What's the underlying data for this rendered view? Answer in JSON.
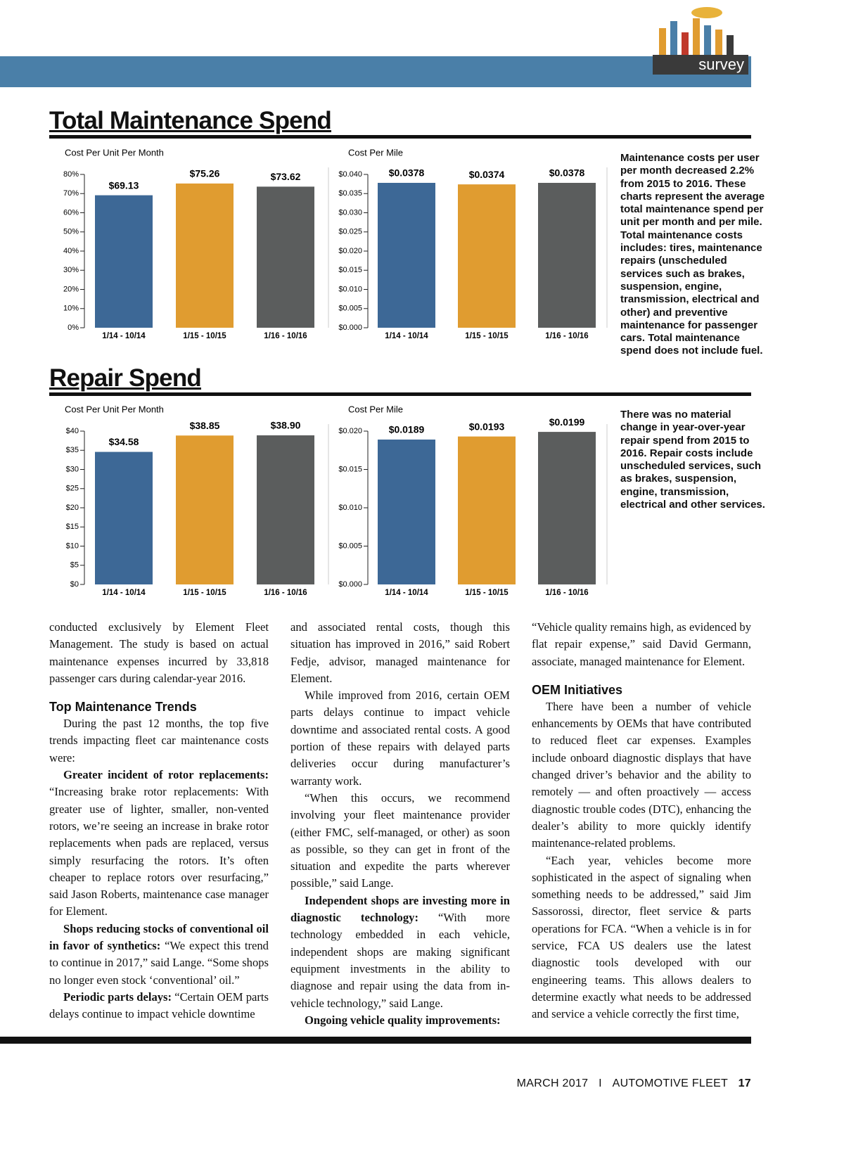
{
  "header": {
    "tag": "survey"
  },
  "sections": [
    {
      "title": "Total Maintenance Spend",
      "note": "Maintenance costs per user per month decreased 2.2% from 2015 to 2016. These charts represent the average total maintenance spend per unit per month and per mile. Total maintenance costs includes: tires, maintenance repairs (unscheduled services such as brakes, suspension, engine, transmission, electrical and other) and preventive maintenance for passenger cars. Total maintenance spend does not include fuel."
    },
    {
      "title": "Repair Spend",
      "note": "There was no material change in year-over-year repair spend from 2015 to 2016. Repair costs include unscheduled services, such as brakes, suspension, engine, transmission, electrical and other services."
    }
  ],
  "chart_data": [
    {
      "type": "bar",
      "title": "Cost Per Unit Per Month",
      "categories": [
        "1/14 - 10/14",
        "1/15 - 10/15",
        "1/16 - 10/16"
      ],
      "values": [
        69.13,
        75.26,
        73.62
      ],
      "value_labels": [
        "$69.13",
        "$75.26",
        "$73.62"
      ],
      "colors": [
        "#3d6896",
        "#e09c30",
        "#5b5d5d"
      ],
      "ylim": [
        0,
        80
      ],
      "yticks": [
        {
          "value": 0,
          "label": "0%"
        },
        {
          "value": 10,
          "label": "10%"
        },
        {
          "value": 20,
          "label": "20%"
        },
        {
          "value": 30,
          "label": "30%"
        },
        {
          "value": 40,
          "label": "40%"
        },
        {
          "value": 50,
          "label": "50%"
        },
        {
          "value": 60,
          "label": "60%"
        },
        {
          "value": 70,
          "label": "70%"
        },
        {
          "value": 80,
          "label": "80%"
        }
      ]
    },
    {
      "type": "bar",
      "title": "Cost Per Mile",
      "categories": [
        "1/14 - 10/14",
        "1/15 - 10/15",
        "1/16 - 10/16"
      ],
      "values": [
        0.0378,
        0.0374,
        0.0378
      ],
      "value_labels": [
        "$0.0378",
        "$0.0374",
        "$0.0378"
      ],
      "colors": [
        "#3d6896",
        "#e09c30",
        "#5b5d5d"
      ],
      "ylim": [
        0,
        0.04
      ],
      "yticks": [
        {
          "value": 0,
          "label": "$0.000"
        },
        {
          "value": 0.005,
          "label": "$0.005"
        },
        {
          "value": 0.01,
          "label": "$0.010"
        },
        {
          "value": 0.015,
          "label": "$0.015"
        },
        {
          "value": 0.02,
          "label": "$0.020"
        },
        {
          "value": 0.025,
          "label": "$0.025"
        },
        {
          "value": 0.03,
          "label": "$0.030"
        },
        {
          "value": 0.035,
          "label": "$0.035"
        },
        {
          "value": 0.04,
          "label": "$0.040"
        }
      ]
    },
    {
      "type": "bar",
      "title": "Cost Per Unit Per Month",
      "categories": [
        "1/14 - 10/14",
        "1/15 - 10/15",
        "1/16 - 10/16"
      ],
      "values": [
        34.58,
        38.85,
        38.9
      ],
      "value_labels": [
        "$34.58",
        "$38.85",
        "$38.90"
      ],
      "colors": [
        "#3d6896",
        "#e09c30",
        "#5b5d5d"
      ],
      "ylim": [
        0,
        40
      ],
      "yticks": [
        {
          "value": 0,
          "label": "$0"
        },
        {
          "value": 5,
          "label": "$5"
        },
        {
          "value": 10,
          "label": "$10"
        },
        {
          "value": 15,
          "label": "$15"
        },
        {
          "value": 20,
          "label": "$20"
        },
        {
          "value": 25,
          "label": "$25"
        },
        {
          "value": 30,
          "label": "$30"
        },
        {
          "value": 35,
          "label": "$35"
        },
        {
          "value": 40,
          "label": "$40"
        }
      ]
    },
    {
      "type": "bar",
      "title": "Cost Per Mile",
      "categories": [
        "1/14 - 10/14",
        "1/15 - 10/15",
        "1/16 - 10/16"
      ],
      "values": [
        0.0189,
        0.0193,
        0.0199
      ],
      "value_labels": [
        "$0.0189",
        "$0.0193",
        "$0.0199"
      ],
      "colors": [
        "#3d6896",
        "#e09c30",
        "#5b5d5d"
      ],
      "ylim": [
        0,
        0.02
      ],
      "yticks": [
        {
          "value": 0,
          "label": "$0.000"
        },
        {
          "value": 0.005,
          "label": "$0.005"
        },
        {
          "value": 0.01,
          "label": "$0.010"
        },
        {
          "value": 0.015,
          "label": "$0.015"
        },
        {
          "value": 0.02,
          "label": "$0.020"
        }
      ]
    }
  ],
  "article": {
    "columns": [
      [
        {
          "text": "conducted exclusively by Element Fleet Management. The study is based on actual maintenance expenses incurred by 33,818 passenger cars during calendar-year 2016."
        },
        {
          "heading": "Top Maintenance Trends"
        },
        {
          "text": "During the past 12 months, the top five trends impacting fleet car maintenance costs were:"
        },
        {
          "lead": "Greater incident of rotor replacements:",
          "text": "“Increasing brake rotor replacements: With greater use of lighter, smaller, non-vented rotors, we’re seeing an increase in brake rotor replacements when pads are replaced, versus simply resurfacing the rotors. It’s often cheaper to replace rotors over resurfacing,” said Jason Roberts, maintenance case manager for Element."
        },
        {
          "lead": "Shops reducing stocks of conventional oil in favor of synthetics:",
          "text": "“We expect this trend to continue in 2017,” said Lange. “Some shops no longer even stock ‘conventional’ oil.”"
        },
        {
          "lead": "Periodic parts delays:",
          "text": "“Certain OEM parts delays continue to impact vehicle downtime"
        }
      ],
      [
        {
          "text": "and associated rental costs, though this situation has improved in 2016,” said Robert Fedje, advisor, managed maintenance for Element."
        },
        {
          "text": "While improved from 2016, certain OEM parts delays continue to impact vehicle downtime and associated rental costs. A good portion of these repairs with delayed parts deliveries occur during manufacturer’s warranty work."
        },
        {
          "text": "“When this occurs, we recommend involving your fleet maintenance provider (either FMC, self-managed, or other) as soon as possible, so they can get in front of the situation and expedite the parts wherever possible,” said Lange."
        },
        {
          "lead": "Independent shops are investing more in diagnostic technology:",
          "text": "“With more technology embedded in each vehicle, independent shops are making significant equipment investments in the ability to diagnose and repair using the data from in-vehicle technology,” said Lange."
        },
        {
          "lead": "Ongoing vehicle quality improvements:"
        }
      ],
      [
        {
          "text": "“Vehicle quality remains high, as evidenced by flat repair expense,” said David Germann, associate, managed maintenance for Element."
        },
        {
          "heading": "OEM Initiatives"
        },
        {
          "text": "There have been a number of vehicle enhancements by OEMs that have contributed to reduced fleet car expenses. Examples include onboard diagnostic displays that have changed driver’s behavior and the ability to remotely — and often proactively — access diagnostic trouble codes (DTC), enhancing the dealer’s ability to more quickly identify maintenance-related problems."
        },
        {
          "text": "“Each year, vehicles become more sophisticated in the aspect of signaling when something needs to be addressed,” said Jim Sassorossi, director, fleet service & parts operations for FCA. “When a vehicle is in for service, FCA US dealers use the latest diagnostic tools developed with our engineering teams. This allows dealers to determine exactly what needs to be addressed and service a vehicle correctly the first time,"
        }
      ]
    ]
  },
  "footer": {
    "issue": "MARCH 2017",
    "separator": "I",
    "publication": "AUTOMOTIVE FLEET",
    "page": "17"
  }
}
